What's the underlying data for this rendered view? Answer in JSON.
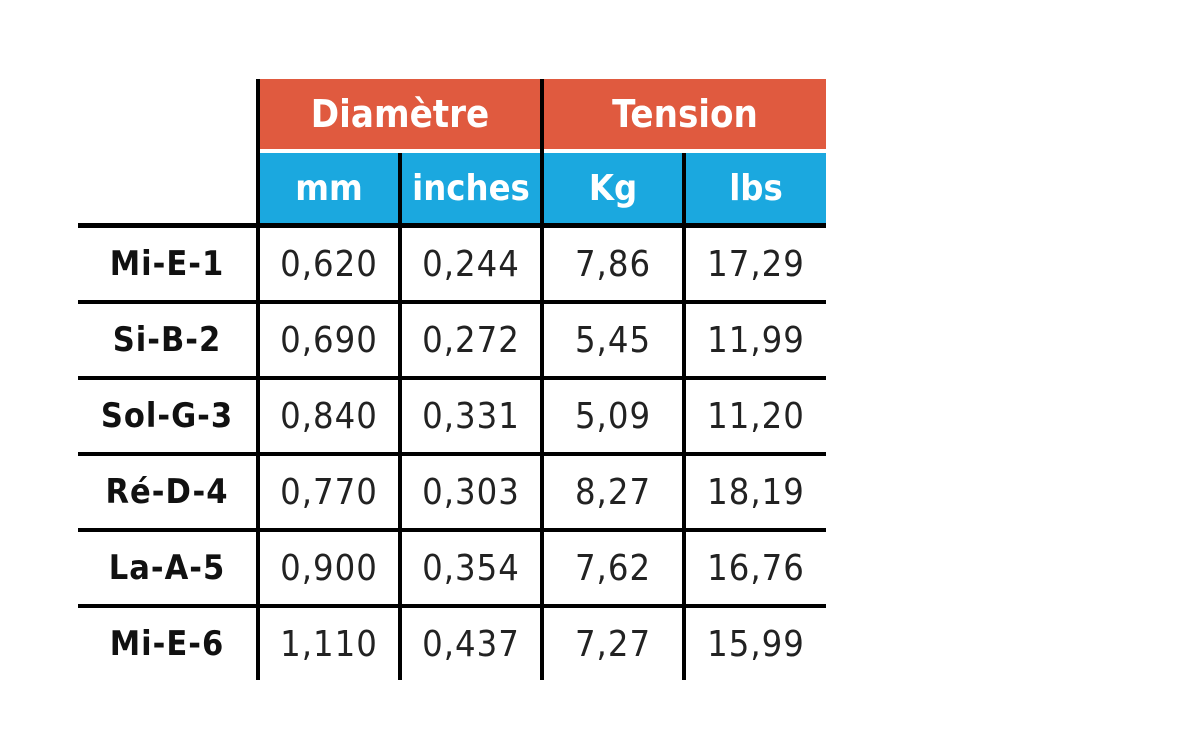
{
  "colors": {
    "group_header_bg": "#e05a3f",
    "unit_header_bg": "#1ba8df",
    "grid_lines": "#000000",
    "text": "#111111"
  },
  "table": {
    "group_headers": [
      "Diamètre",
      "Tension"
    ],
    "unit_headers": [
      "mm",
      "inches",
      "Kg",
      "lbs"
    ],
    "rows": [
      {
        "label": "Mi-E-1",
        "values": [
          "0,620",
          "0,244",
          "7,86",
          "17,29"
        ]
      },
      {
        "label": "Si-B-2",
        "values": [
          "0,690",
          "0,272",
          "5,45",
          "11,99"
        ]
      },
      {
        "label": "Sol-G-3",
        "values": [
          "0,840",
          "0,331",
          "5,09",
          "11,20"
        ]
      },
      {
        "label": "Ré-D-4",
        "values": [
          "0,770",
          "0,303",
          "8,27",
          "18,19"
        ]
      },
      {
        "label": "La-A-5",
        "values": [
          "0,900",
          "0,354",
          "7,62",
          "16,76"
        ]
      },
      {
        "label": "Mi-E-6",
        "values": [
          "1,110",
          "0,437",
          "7,27",
          "15,99"
        ]
      }
    ]
  }
}
